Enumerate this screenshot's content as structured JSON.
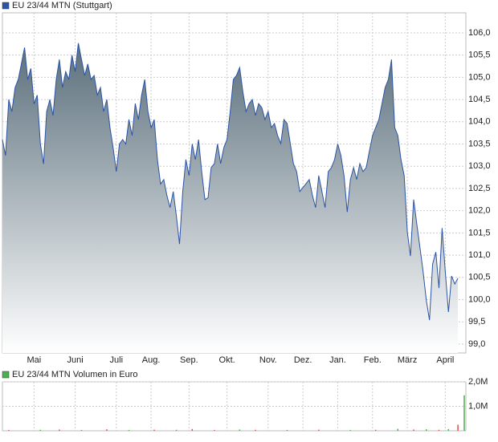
{
  "chart_data": [
    {
      "type": "area",
      "title": "EU 23/44 MTN (Stuttgart)",
      "color": "#2b54a6",
      "values": [
        103.6,
        103.24,
        104.5,
        104.23,
        104.77,
        104.95,
        105.3,
        105.67,
        104.95,
        105.2,
        104.4,
        104.6,
        103.5,
        103.05,
        104.23,
        104.5,
        104.14,
        104.95,
        105.4,
        104.77,
        105.13,
        104.95,
        105.5,
        105.13,
        105.77,
        105.4,
        105.04,
        105.3,
        104.95,
        105.04,
        104.6,
        104.77,
        104.23,
        104.5,
        103.87,
        103.42,
        102.88,
        103.5,
        103.6,
        103.5,
        104.05,
        103.69,
        104.41,
        104.05,
        104.6,
        104.95,
        104.23,
        103.87,
        104.05,
        103.15,
        102.6,
        102.7,
        102.34,
        102.07,
        102.43,
        101.88,
        101.25,
        102.43,
        103.15,
        102.79,
        103.5,
        103.15,
        103.6,
        102.88,
        102.25,
        102.29,
        102.97,
        103.06,
        103.5,
        103.06,
        103.42,
        103.6,
        104.23,
        104.95,
        105.04,
        105.22,
        104.68,
        104.23,
        104.41,
        104.5,
        104.14,
        104.41,
        104.32,
        104.05,
        104.23,
        103.87,
        103.96,
        103.69,
        103.51,
        104.05,
        103.96,
        103.51,
        103.06,
        102.88,
        102.43,
        102.52,
        102.61,
        102.7,
        102.34,
        102.07,
        102.79,
        102.43,
        102.07,
        102.88,
        102.97,
        103.15,
        103.5,
        103.24,
        102.79,
        101.97,
        102.7,
        102.97,
        102.7,
        103.06,
        102.88,
        102.97,
        103.33,
        103.69,
        103.87,
        104.05,
        104.41,
        104.77,
        104.95,
        105.4,
        103.87,
        103.69,
        103.15,
        102.79,
        101.52,
        100.98,
        102.25,
        101.7,
        101.16,
        100.62,
        99.99,
        99.54,
        100.8,
        101.07,
        100.26,
        101.61,
        100.62,
        99.72,
        100.53,
        100.35,
        100.48
      ],
      "xlim": [
        0,
        146
      ],
      "xticks": [
        {
          "value": 10,
          "label": "Mai"
        },
        {
          "value": 23,
          "label": "Juni"
        },
        {
          "value": 36,
          "label": "Juli"
        },
        {
          "value": 47,
          "label": "Aug."
        },
        {
          "value": 59,
          "label": "Sep."
        },
        {
          "value": 71,
          "label": "Okt."
        },
        {
          "value": 84,
          "label": "Nov."
        },
        {
          "value": 95,
          "label": "Dez."
        },
        {
          "value": 106,
          "label": "Jan."
        },
        {
          "value": 117,
          "label": "Feb."
        },
        {
          "value": 128,
          "label": "März"
        },
        {
          "value": 140,
          "label": "April"
        }
      ],
      "ylim": [
        98.8,
        106.45
      ],
      "yticks": [
        {
          "value": 99,
          "label": "99,0"
        },
        {
          "value": 99.5,
          "label": "99,5"
        },
        {
          "value": 100,
          "label": "100,0"
        },
        {
          "value": 100.5,
          "label": "100,5"
        },
        {
          "value": 101,
          "label": "101,0"
        },
        {
          "value": 101.5,
          "label": "101,5"
        },
        {
          "value": 102,
          "label": "102,0"
        },
        {
          "value": 102.5,
          "label": "102,5"
        },
        {
          "value": 103,
          "label": "103,0"
        },
        {
          "value": 103.5,
          "label": "103,5"
        },
        {
          "value": 104,
          "label": "104,0"
        },
        {
          "value": 104.5,
          "label": "104,5"
        },
        {
          "value": 105,
          "label": "105,0"
        },
        {
          "value": 105.5,
          "label": "105,5"
        },
        {
          "value": 106,
          "label": "106,0"
        }
      ],
      "grid": true
    },
    {
      "type": "bar",
      "title": "EU 23/44 MTN Volumen in Euro",
      "color": "#4caf50",
      "x": [
        2,
        12,
        18,
        25,
        33,
        40,
        48,
        55,
        60,
        67,
        75,
        80,
        90,
        100,
        110,
        118,
        125,
        130,
        134,
        138,
        141,
        144,
        146
      ],
      "values": [
        30000,
        40000,
        50000,
        35000,
        60000,
        30000,
        45000,
        40000,
        70000,
        30000,
        50000,
        40000,
        35000,
        45000,
        30000,
        40000,
        80000,
        50000,
        60000,
        40000,
        70000,
        250000,
        1450000
      ],
      "colors": [
        "#d9534f",
        "#4caf50",
        "#d9534f",
        "#4caf50",
        "#d9534f",
        "#4caf50",
        "#d9534f",
        "#4caf50",
        "#d9534f",
        "#d9534f",
        "#4caf50",
        "#d9534f",
        "#4caf50",
        "#d9534f",
        "#4caf50",
        "#d9534f",
        "#4caf50",
        "#d9534f",
        "#4caf50",
        "#d9534f",
        "#4caf50",
        "#d9534f",
        "#4caf50"
      ],
      "xlim": [
        0,
        146
      ],
      "ylim": [
        0,
        2000000
      ],
      "yticks": [
        {
          "value": 1000000,
          "label": "1,0M"
        },
        {
          "value": 2000000,
          "label": "2,0M"
        }
      ],
      "grid": true
    }
  ]
}
